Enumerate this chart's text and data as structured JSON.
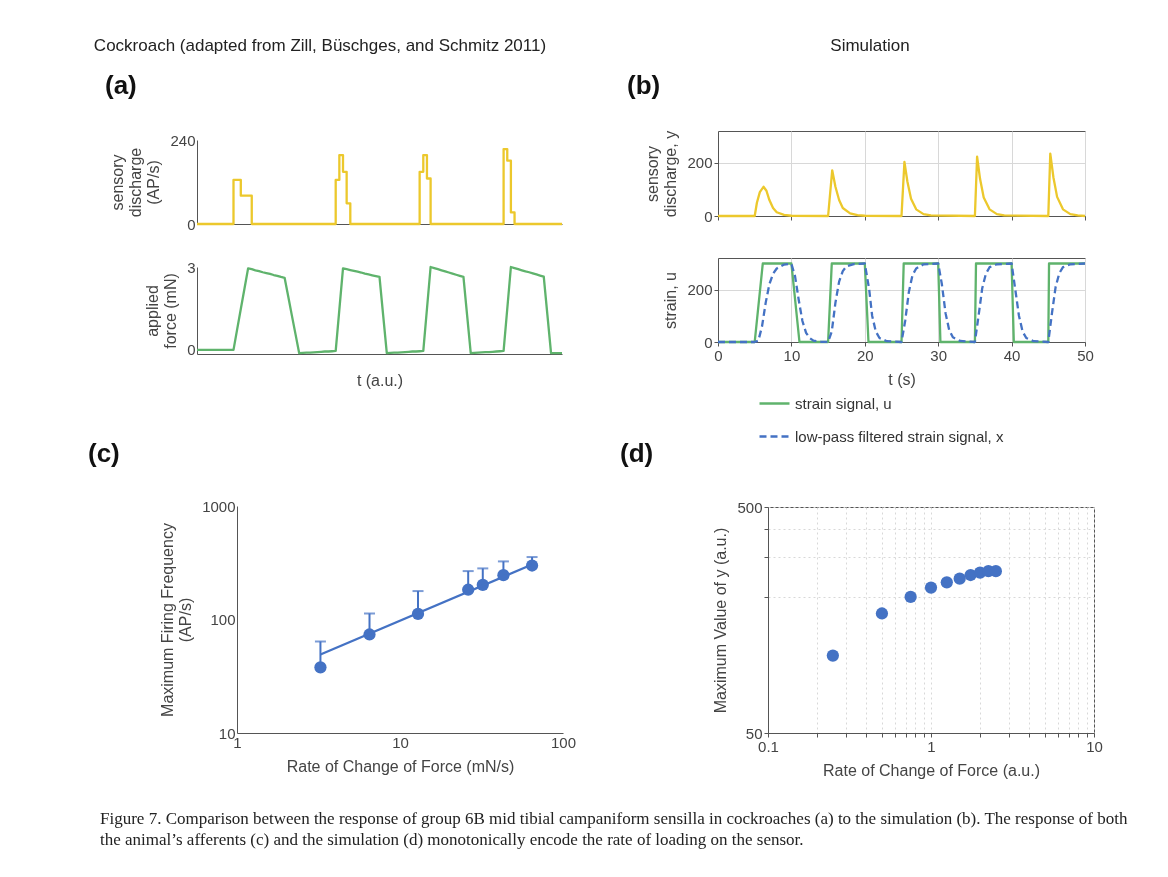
{
  "chart_data": [
    {
      "type": "step",
      "title": "Cockroach (adapted from Zill, Büschges, and Schmitz 2011)",
      "subtitle": "(a)",
      "ylabel": "sensory\ndischarge\n(AP/s)",
      "categories": [
        null,
        null,
        null,
        null,
        null,
        null,
        null,
        null,
        null,
        null,
        null,
        null,
        null,
        null,
        null,
        null,
        null,
        null,
        null,
        null,
        null,
        null,
        null,
        null,
        null,
        null,
        null,
        null,
        null,
        null,
        null,
        null,
        null,
        null,
        null,
        null,
        null,
        null,
        null,
        null,
        null,
        null,
        null,
        null,
        null,
        null,
        null,
        null,
        null,
        null,
        null,
        null,
        null,
        null,
        null,
        null,
        null,
        null,
        null,
        null,
        null,
        null,
        null,
        null,
        null,
        null,
        null,
        null,
        null,
        null,
        null,
        null,
        null,
        null,
        null,
        null,
        null,
        null,
        null,
        null,
        null,
        null,
        null,
        null,
        null,
        null,
        null,
        null,
        null,
        null,
        null,
        null,
        null,
        null,
        null,
        null,
        null,
        null,
        null,
        null,
        null
      ],
      "series": [
        {
          "color": "#ecc82c",
          "values": [
            0,
            0,
            0,
            0,
            0,
            0,
            0,
            0,
            0,
            0,
            126,
            126,
            81,
            81,
            81,
            0,
            0,
            0,
            0,
            0,
            0,
            0,
            0,
            0,
            0,
            0,
            0,
            0,
            0,
            0,
            0,
            0,
            0,
            0,
            0,
            0,
            0,
            0,
            126,
            197,
            149,
            59,
            0,
            0,
            0,
            0,
            0,
            0,
            0,
            0,
            0,
            0,
            0,
            0,
            0,
            0,
            0,
            0,
            0,
            0,
            0,
            149,
            197,
            130,
            0,
            0,
            0,
            0,
            0,
            0,
            0,
            0,
            0,
            0,
            0,
            0,
            0,
            0,
            0,
            0,
            0,
            0,
            0,
            0,
            214,
            181,
            33,
            0,
            0,
            0,
            0,
            0,
            0,
            0,
            0,
            0,
            0,
            0,
            0,
            0,
            0
          ]
        }
      ],
      "ylim": [
        0,
        240
      ],
      "yticks": [
        0,
        240
      ],
      "tick_labels": "y"
    },
    {
      "type": "line",
      "ylabel": "applied\nforce (mN)",
      "xlabel": "t (a.u.)",
      "categories": [
        null,
        null,
        null,
        null,
        null,
        null,
        null,
        null,
        null,
        null,
        null,
        null,
        null,
        null,
        null,
        null,
        null,
        null,
        null,
        null,
        null,
        null,
        null,
        null,
        null,
        null,
        null,
        null,
        null,
        null,
        null,
        null,
        null,
        null,
        null,
        null,
        null,
        null,
        null,
        null,
        null,
        null,
        null,
        null,
        null,
        null,
        null,
        null,
        null,
        null,
        null,
        null,
        null,
        null,
        null,
        null,
        null,
        null,
        null,
        null,
        null,
        null,
        null,
        null,
        null,
        null,
        null,
        null,
        null,
        null,
        null,
        null,
        null,
        null,
        null,
        null,
        null,
        null,
        null,
        null,
        null,
        null,
        null,
        null,
        null,
        null,
        null,
        null,
        null,
        null,
        null,
        null,
        null,
        null,
        null,
        null,
        null,
        null,
        null,
        null,
        null
      ],
      "series": [
        {
          "color": "#5fb36c",
          "values": [
            0,
            0,
            0,
            0,
            0,
            0,
            0,
            0,
            0,
            0,
            0,
            0.74,
            1.48,
            2.21,
            2.95,
            2.92,
            2.88,
            2.85,
            2.81,
            2.78,
            2.75,
            2.71,
            2.68,
            2.64,
            2.61,
            1.93,
            1.24,
            0.56,
            -0.12,
            -0.11,
            -0.1,
            -0.1,
            -0.09,
            -0.08,
            -0.07,
            -0.06,
            -0.06,
            -0.05,
            -0.04,
            1.46,
            2.95,
            2.92,
            2.89,
            2.86,
            2.83,
            2.8,
            2.76,
            2.73,
            2.7,
            2.67,
            2.64,
            1.26,
            -0.12,
            -0.11,
            -0.1,
            -0.1,
            -0.09,
            -0.08,
            -0.07,
            -0.06,
            -0.06,
            -0.05,
            -0.04,
            1.48,
            3.0,
            2.96,
            2.92,
            2.88,
            2.84,
            2.8,
            2.76,
            2.72,
            2.68,
            2.64,
            1.26,
            -0.12,
            -0.11,
            -0.1,
            -0.09,
            -0.08,
            -0.08,
            -0.07,
            -0.06,
            -0.05,
            -0.04,
            1.48,
            3.0,
            2.96,
            2.92,
            2.88,
            2.84,
            2.81,
            2.77,
            2.73,
            2.69,
            2.65,
            1.27,
            -0.12,
            -0.12,
            -0.12,
            -0.12
          ]
        }
      ],
      "ylim": [
        -0.15,
        3
      ],
      "yticks": [
        0,
        3
      ],
      "tick_labels": "y"
    },
    {
      "type": "line",
      "title": "Simulation",
      "subtitle": "(b)",
      "ylabel": "sensory\ndischarge, y",
      "x": [
        0,
        5,
        5.3,
        5.7,
        6.2,
        6.6,
        7,
        7.5,
        8,
        9,
        10,
        15,
        15.56,
        16,
        16.5,
        17,
        18,
        19,
        20,
        25,
        25.4,
        25.8,
        26.3,
        27,
        28,
        29,
        35,
        35.3,
        35.7,
        36.2,
        37,
        38,
        39,
        45,
        45.27,
        45.7,
        46.2,
        47,
        48,
        49,
        50
      ],
      "series": [
        {
          "color": "#ecc82c",
          "values": [
            0,
            0,
            50,
            90,
            110,
            95,
            60,
            30,
            14,
            4,
            1,
            0,
            172,
            110,
            60,
            30,
            10,
            3,
            1,
            0,
            204,
            130,
            65,
            25,
            7,
            2,
            0,
            223,
            140,
            70,
            25,
            7,
            2,
            0,
            235,
            145,
            72,
            25,
            7,
            2,
            0
          ]
        }
      ],
      "xlim": [
        0,
        50
      ],
      "xticks": [
        0,
        10,
        20,
        30,
        40,
        50
      ],
      "ylim": [
        0,
        320
      ],
      "yticks": [
        0,
        200
      ],
      "grid": true,
      "tick_labels": "y"
    },
    {
      "type": "line",
      "ylabel": "strain, u",
      "xlabel": "t (s)",
      "series": [
        {
          "name": "strain signal, u",
          "color": "#5fb36c",
          "line_style": "solid",
          "x": [
            0,
            5,
            6.1,
            10,
            11.1,
            15,
            15.5,
            20,
            20.5,
            25,
            25.3,
            30,
            30.3,
            35,
            35.15,
            40,
            40.3,
            45,
            45.1,
            50
          ],
          "values": [
            0,
            0,
            299,
            299,
            0,
            0,
            299,
            299,
            0,
            0,
            299,
            299,
            0,
            0,
            299,
            299,
            0,
            0,
            299,
            299
          ]
        },
        {
          "name": "low-pass filtered strain signal, x",
          "color": "#4472c4",
          "line_style": "dashed",
          "x": [
            0,
            5,
            5.5,
            6,
            6.5,
            7,
            7.5,
            8,
            9,
            10,
            10.5,
            11,
            11.5,
            12,
            12.5,
            13,
            14,
            15,
            15.5,
            16,
            16.5,
            17,
            17.5,
            18.5,
            20,
            20.6,
            21,
            21.5,
            22,
            23,
            25,
            25.5,
            26,
            26.5,
            27,
            28,
            30,
            30.5,
            31,
            31.5,
            32,
            33,
            35,
            35.5,
            36,
            36.5,
            37,
            38,
            40,
            40.5,
            41,
            41.5,
            42,
            43,
            45,
            45.5,
            46,
            46.5,
            47,
            48,
            50
          ],
          "values": [
            0,
            0,
            5,
            60,
            150,
            220,
            260,
            280,
            295,
            298,
            250,
            160,
            80,
            35,
            15,
            5,
            1,
            0,
            40,
            150,
            230,
            270,
            288,
            297,
            299,
            200,
            100,
            40,
            15,
            3,
            0,
            80,
            190,
            255,
            280,
            296,
            299,
            220,
            110,
            45,
            18,
            4,
            0,
            100,
            205,
            260,
            285,
            296,
            299,
            200,
            100,
            40,
            15,
            3,
            0,
            110,
            210,
            262,
            285,
            296,
            299
          ]
        }
      ],
      "xlim": [
        0,
        50
      ],
      "xticks": [
        0,
        10,
        20,
        30,
        40,
        50
      ],
      "ylim": [
        0,
        320
      ],
      "yticks": [
        0,
        200
      ],
      "grid": true,
      "legend": "bottom"
    },
    {
      "type": "scatter",
      "title": "(c)",
      "xlabel": "Rate of Change of Force (mN/s)",
      "ylabel": "Maximum Firing Frequency\n(AP/s)",
      "log": "xy",
      "series": [
        {
          "color": "#4472c4",
          "marker": "circle",
          "x": [
            3.25,
            6.5,
            12.9,
            26.2,
            32.2,
            43.1,
            64.6
          ],
          "values": [
            37.9,
            73.8,
            112,
            183,
            202,
            246,
            299
          ],
          "errors": [
            [
              37.9,
              64
            ],
            [
              73.8,
              113
            ],
            [
              112,
              178
            ],
            [
              183,
              267
            ],
            [
              202,
              282
            ],
            [
              246,
              325
            ],
            [
              299,
              355
            ]
          ]
        },
        {
          "type": "line",
          "color": "#4472c4",
          "x": [
            3.25,
            64.6
          ],
          "values": [
            49.1,
            305
          ]
        }
      ],
      "xlim": [
        1,
        100
      ],
      "xticks": [
        1,
        10,
        100
      ],
      "ylim": [
        10,
        1000
      ],
      "yticks": [
        10,
        100,
        1000
      ]
    },
    {
      "type": "scatter",
      "title": "(d)",
      "xlabel": "Rate of Change of Force (a.u.)",
      "ylabel": "Maximum Value of y (a.u.)",
      "log": "xy",
      "marker": "circle",
      "grid": true,
      "x": [
        0.25,
        0.5,
        0.75,
        1,
        1.25,
        1.5,
        1.75,
        2,
        2.25,
        2.5
      ],
      "series": [
        {
          "color": "#4472c4",
          "values": [
            110,
            169,
            200,
            220,
            232,
            241,
            250,
            256,
            260,
            260
          ]
        }
      ],
      "xlim": [
        0.1,
        10
      ],
      "xticks": [
        0.1,
        {
          "value": 0.2,
          "label": null
        },
        {
          "value": 0.3,
          "label": null
        },
        {
          "value": 0.4,
          "label": null
        },
        {
          "value": 0.5,
          "label": null
        },
        {
          "value": 0.6,
          "label": null
        },
        {
          "value": 0.7,
          "label": null
        },
        {
          "value": 0.8,
          "label": null
        },
        {
          "value": 0.9,
          "label": null
        },
        1,
        {
          "value": 2,
          "label": null
        },
        {
          "value": 3,
          "label": null
        },
        {
          "value": 4,
          "label": null
        },
        {
          "value": 5,
          "label": null
        },
        {
          "value": 6,
          "label": null
        },
        {
          "value": 7,
          "label": null
        },
        {
          "value": 8,
          "label": null
        },
        {
          "value": 9,
          "label": null
        },
        10
      ],
      "ylim": [
        50,
        500
      ],
      "yticks": [
        50,
        {
          "value": 200,
          "label": null
        },
        {
          "value": 300,
          "label": null
        },
        {
          "value": 400,
          "label": null
        },
        500
      ],
      "annotations": [
        "Figure 7. Comparison between the response of group 6B mid tibial campaniform sensilla in cockroaches (a) to the simulation (b). The response of both the animal’s afferents (c) and the simulation (d) monotonically encode the rate of loading on the sensor."
      ]
    }
  ]
}
